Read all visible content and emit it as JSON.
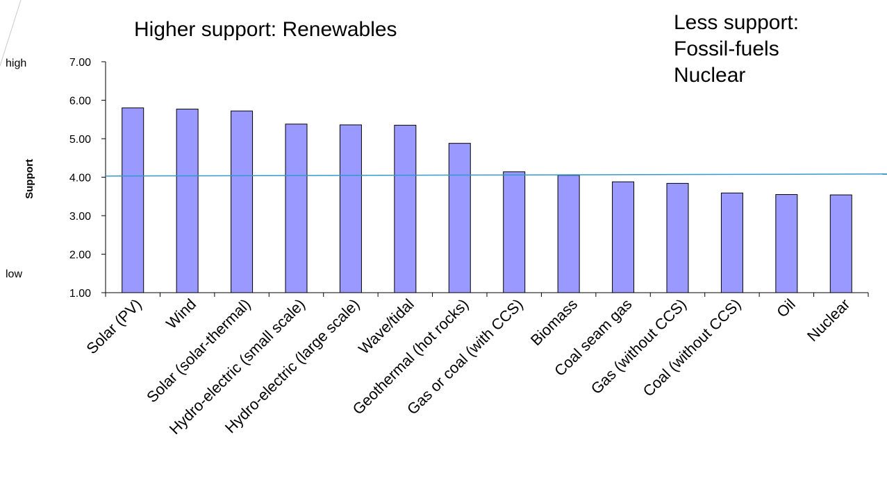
{
  "chart_data": {
    "type": "bar",
    "title": "Higher support: Renewables",
    "annotation_lines": [
      "Less support:",
      "Fossil-fuels",
      "Nuclear"
    ],
    "ylabel": "Support",
    "xlabel": "",
    "y_extreme_labels": {
      "high": "high",
      "low": "low"
    },
    "ylim": [
      1.0,
      7.0
    ],
    "yticks": [
      "1.00",
      "2.00",
      "3.00",
      "4.00",
      "5.00",
      "6.00",
      "7.00"
    ],
    "reference_line": 4.03,
    "categories": [
      "Solar (PV)",
      "Wind",
      "Solar (solar-thermal)",
      "Hydro-electric (small scale)",
      "Hydro-electric (large scale)",
      "Wave/tidal",
      "Geothermal (hot rocks)",
      "Gas or coal (with CCS)",
      "Biomass",
      "Coal seam gas",
      "Gas (without CCS)",
      "Coal (without CCS)",
      "Oil",
      "Nuclear"
    ],
    "values": [
      5.8,
      5.77,
      5.72,
      5.38,
      5.36,
      5.35,
      4.88,
      4.14,
      4.05,
      3.88,
      3.84,
      3.59,
      3.55,
      3.54
    ],
    "grid": false,
    "legend": "none",
    "colors": {
      "bar": "#9999ff",
      "bar_border": "#000000",
      "reference_line": "#3399cc"
    }
  }
}
